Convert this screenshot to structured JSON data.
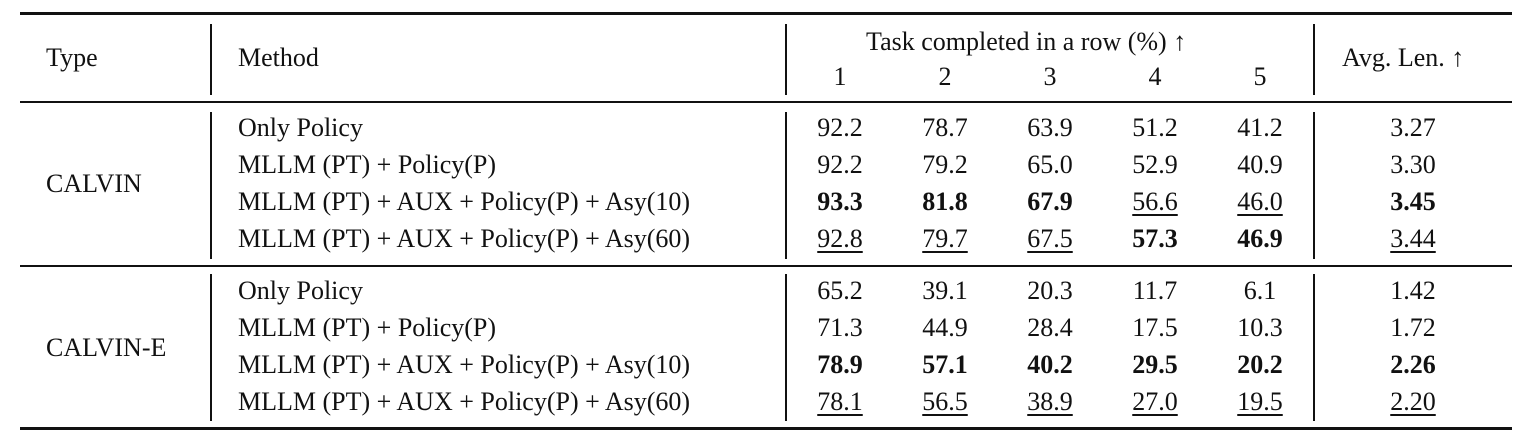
{
  "header": {
    "type": "Type",
    "method": "Method",
    "task_group": "Task completed in a row (%) ↑",
    "cols": [
      "1",
      "2",
      "3",
      "4",
      "5"
    ],
    "avg": "Avg. Len. ↑"
  },
  "groups": [
    {
      "type": "CALVIN",
      "rows": [
        {
          "method": "Only Policy",
          "values": [
            "92.2",
            "78.7",
            "63.9",
            "51.2",
            "41.2"
          ],
          "avg": "3.27",
          "style": [
            "",
            "",
            "",
            "",
            ""
          ],
          "avg_style": ""
        },
        {
          "method": "MLLM (PT) + Policy(P)",
          "values": [
            "92.2",
            "79.2",
            "65.0",
            "52.9",
            "40.9"
          ],
          "avg": "3.30",
          "style": [
            "",
            "",
            "",
            "",
            ""
          ],
          "avg_style": ""
        },
        {
          "method": "MLLM (PT) + AUX + Policy(P) + Asy(10)",
          "values": [
            "93.3",
            "81.8",
            "67.9",
            "56.6",
            "46.0"
          ],
          "avg": "3.45",
          "style": [
            "bold",
            "bold",
            "bold",
            "underline",
            "underline"
          ],
          "avg_style": "bold"
        },
        {
          "method": "MLLM (PT) + AUX + Policy(P) + Asy(60)",
          "values": [
            "92.8",
            "79.7",
            "67.5",
            "57.3",
            "46.9"
          ],
          "avg": "3.44",
          "style": [
            "underline",
            "underline",
            "underline",
            "bold",
            "bold"
          ],
          "avg_style": "underline"
        }
      ]
    },
    {
      "type": "CALVIN-E",
      "rows": [
        {
          "method": "Only Policy",
          "values": [
            "65.2",
            "39.1",
            "20.3",
            "11.7",
            "6.1"
          ],
          "avg": "1.42",
          "style": [
            "",
            "",
            "",
            "",
            ""
          ],
          "avg_style": ""
        },
        {
          "method": "MLLM (PT) + Policy(P)",
          "values": [
            "71.3",
            "44.9",
            "28.4",
            "17.5",
            "10.3"
          ],
          "avg": "1.72",
          "style": [
            "",
            "",
            "",
            "",
            ""
          ],
          "avg_style": ""
        },
        {
          "method": "MLLM (PT) + AUX + Policy(P) + Asy(10)",
          "values": [
            "78.9",
            "57.1",
            "40.2",
            "29.5",
            "20.2"
          ],
          "avg": "2.26",
          "style": [
            "bold",
            "bold",
            "bold",
            "bold",
            "bold"
          ],
          "avg_style": "bold"
        },
        {
          "method": "MLLM (PT) + AUX + Policy(P) + Asy(60)",
          "values": [
            "78.1",
            "56.5",
            "38.9",
            "27.0",
            "19.5"
          ],
          "avg": "2.20",
          "style": [
            "underline",
            "underline",
            "underline",
            "underline",
            "underline"
          ],
          "avg_style": "underline"
        }
      ]
    }
  ]
}
